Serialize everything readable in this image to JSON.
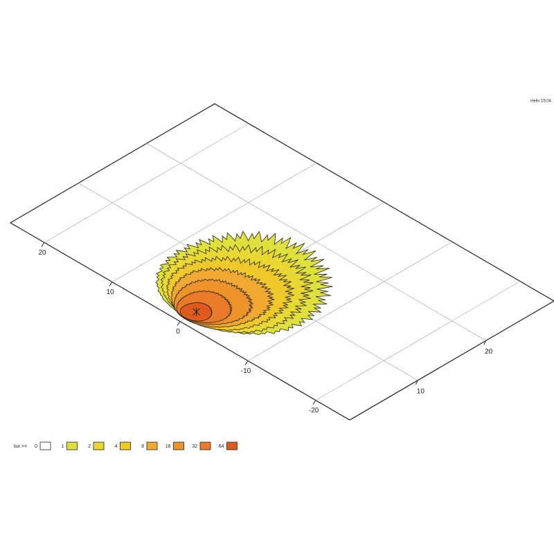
{
  "chart_data": {
    "type": "contour",
    "corner_label": "Helis 15:04",
    "legend_title": "lux >=",
    "levels": [
      0,
      1,
      2,
      4,
      8,
      16,
      32,
      64
    ],
    "colors": [
      "#ffffff",
      "#dfe03c",
      "#e9d832",
      "#efc82a",
      "#f0aa32",
      "#ee922c",
      "#e87a28",
      "#e05a20"
    ],
    "xlim": [
      0,
      30
    ],
    "ylim": [
      -25,
      25
    ],
    "xticks": [
      10,
      20
    ],
    "yticks": [
      -20,
      -10,
      0,
      10,
      20
    ],
    "grid": true
  }
}
